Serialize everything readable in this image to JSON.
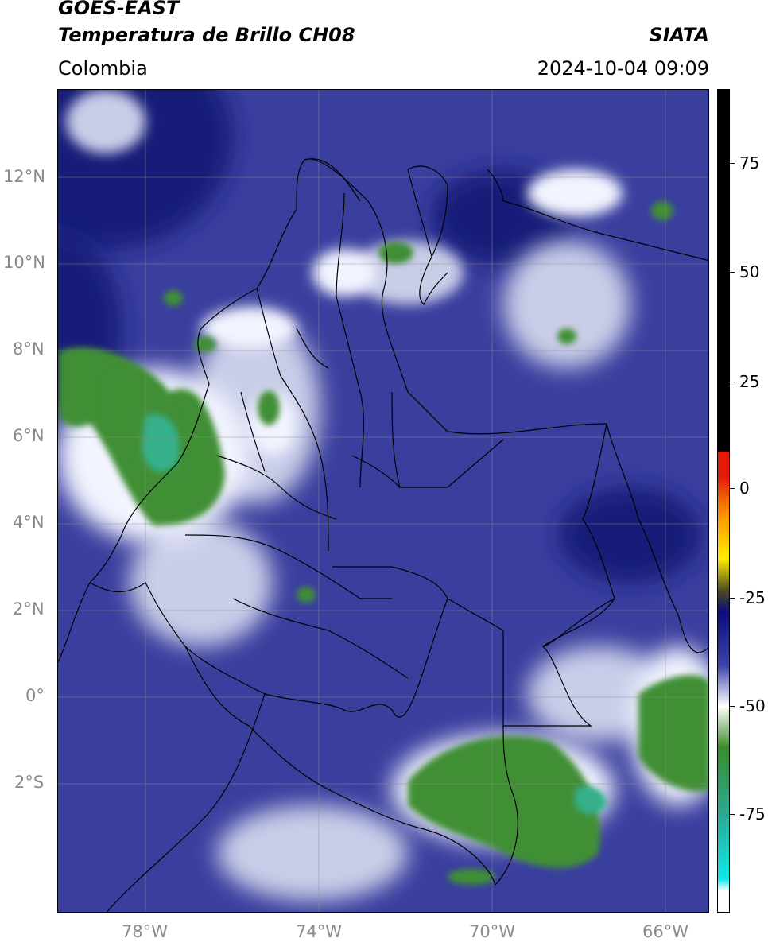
{
  "header": {
    "title_line1": "GOES-EAST",
    "title_line2": "Temperatura de Brillo CH08",
    "brand": "SIATA",
    "region": "Colombia",
    "datetime": "2024-10-04 09:09"
  },
  "axes": {
    "lat_labels": [
      "12°N",
      "10°N",
      "8°N",
      "6°N",
      "4°N",
      "2°N",
      "0°",
      "2°S"
    ],
    "lon_labels": [
      "78°W",
      "74°W",
      "70°W",
      "66°W"
    ]
  },
  "colorbar": {
    "labels": [
      "75",
      "50",
      "25",
      "0",
      "-25",
      "-50",
      "-75"
    ],
    "colors": {
      "black": "#000000",
      "red": "#e61a0a",
      "orange": "#ff9900",
      "yellow": "#ffee00",
      "dark_olive": "#4a4a20",
      "navy": "#0b0b7a",
      "blue": "#3d44a8",
      "white": "#ffffff",
      "green": "#3c8c2c",
      "teal": "#2aa890",
      "cyan": "#10e8e8"
    }
  },
  "map": {
    "cloud_colors": {
      "background": "#3a3f9e",
      "deep_navy": "#141a78",
      "pale": "#c9cde8",
      "white": "#f2f4ff",
      "green": "#3f8f34",
      "teal": "#36b08a"
    },
    "border_color": "#000000",
    "grid_color": "#8c8c8c"
  }
}
